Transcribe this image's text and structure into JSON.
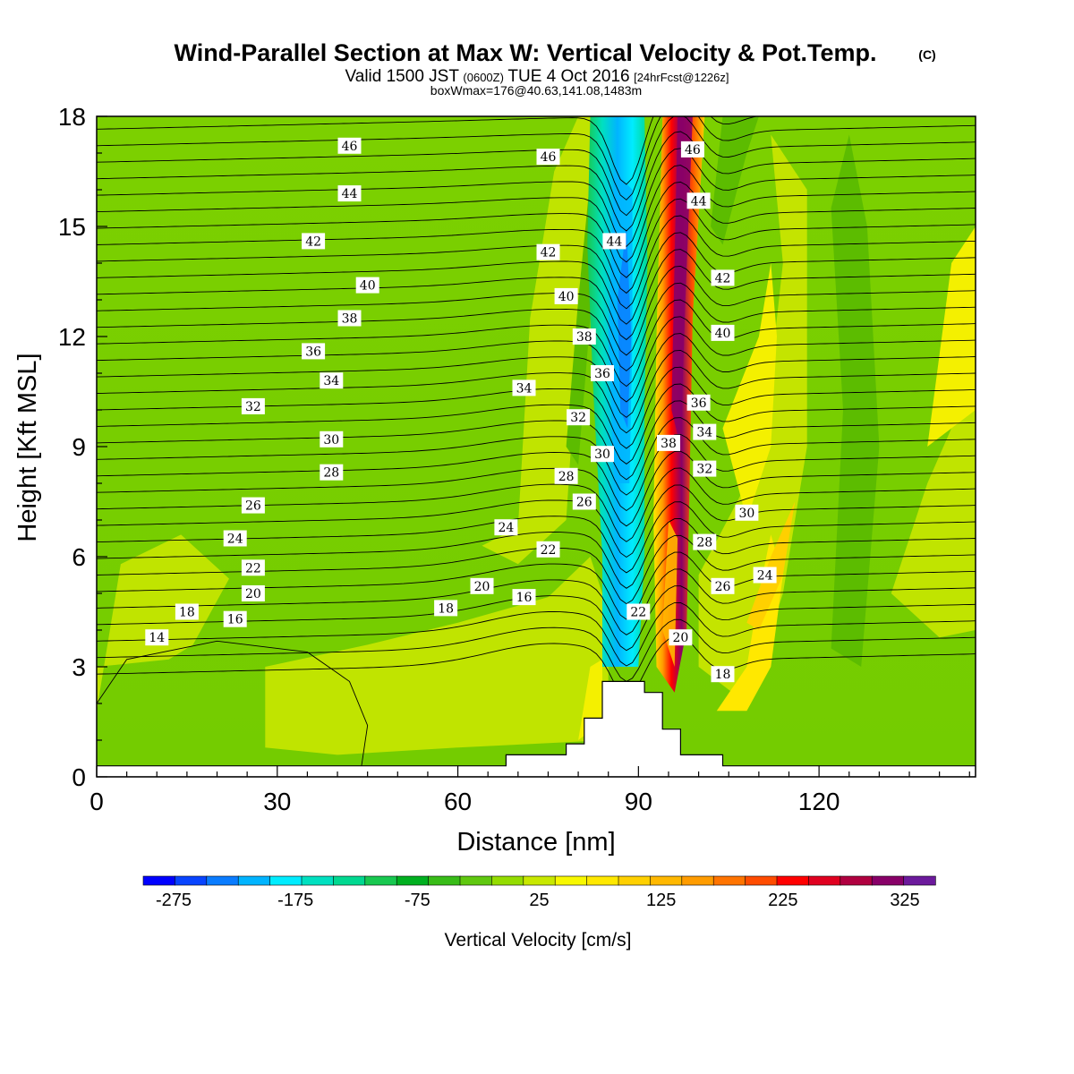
{
  "title": {
    "main": "Wind-Parallel Section at Max W: Vertical Velocity & Pot.Temp.",
    "copyright": "(C)",
    "line2_a": "Valid 1500 JST",
    "line2_b": "(0600Z)",
    "line2_c": "TUE 4 Oct 2016",
    "line2_d": "[24hrFcst@1226z]",
    "line3": "boxWmax=176@40.63,141.08,1483m"
  },
  "chart_data": {
    "type": "heatmap",
    "xlabel": "Distance [nm]",
    "ylabel": "Height [Kft MSL]",
    "xlim": [
      0,
      146
    ],
    "ylim": [
      0,
      18
    ],
    "x_ticks": [
      0,
      30,
      60,
      90,
      120
    ],
    "y_ticks": [
      0,
      3,
      6,
      9,
      12,
      15,
      18
    ],
    "colorbar": {
      "title": "Vertical Velocity [cm/s]",
      "tick_values": [
        -275,
        -175,
        -75,
        25,
        125,
        225,
        325
      ],
      "tick_labels": [
        "-275",
        "-175",
        "-75",
        "25",
        "125",
        "225",
        "325"
      ],
      "colors": [
        "#0000ff",
        "#0844ff",
        "#0a7cff",
        "#00b4ff",
        "#00ecff",
        "#00e0c0",
        "#00d890",
        "#18c850",
        "#00b020",
        "#38bc18",
        "#60c810",
        "#94dc00",
        "#c8e800",
        "#f8f800",
        "#ffe800",
        "#ffd000",
        "#ffb800",
        "#ff9c00",
        "#ff7400",
        "#ff4c00",
        "#ff0000",
        "#e00020",
        "#b00040",
        "#880068",
        "#6c1a9c"
      ]
    },
    "terrain_profile": [
      [
        0,
        0.3
      ],
      [
        68,
        0.3
      ],
      [
        68,
        0.6
      ],
      [
        78,
        0.6
      ],
      [
        78,
        0.9
      ],
      [
        81,
        0.9
      ],
      [
        81,
        1.6
      ],
      [
        84,
        1.6
      ],
      [
        84,
        2.6
      ],
      [
        91,
        2.6
      ],
      [
        91,
        2.3
      ],
      [
        94,
        2.3
      ],
      [
        94,
        1.3
      ],
      [
        97,
        1.3
      ],
      [
        97,
        0.6
      ],
      [
        104,
        0.6
      ],
      [
        104,
        0.3
      ],
      [
        146,
        0.3
      ],
      [
        146,
        0
      ],
      [
        0,
        0
      ]
    ],
    "velocity_series": [
      {
        "x_range": [
          0,
          146
        ],
        "value_cm_s": -50,
        "note": "background"
      },
      {
        "x_range": [
          82,
          92
        ],
        "value_cm_s": -175,
        "label": "downdraft band"
      },
      {
        "x_range": [
          92,
          100
        ],
        "value_cm_s": 300,
        "label": "updraft band"
      }
    ],
    "theta_contour_values": [
      14,
      16,
      18,
      20,
      22,
      24,
      26,
      28,
      30,
      32,
      34,
      36,
      38,
      40,
      42,
      44,
      46
    ],
    "contour_labels": [
      {
        "text": "46",
        "x": 42,
        "y": 17.2
      },
      {
        "text": "44",
        "x": 42,
        "y": 15.9
      },
      {
        "text": "42",
        "x": 36,
        "y": 14.6
      },
      {
        "text": "40",
        "x": 45,
        "y": 13.4
      },
      {
        "text": "38",
        "x": 42,
        "y": 12.5
      },
      {
        "text": "36",
        "x": 36,
        "y": 11.6
      },
      {
        "text": "34",
        "x": 39,
        "y": 10.8
      },
      {
        "text": "32",
        "x": 26,
        "y": 10.1
      },
      {
        "text": "30",
        "x": 39,
        "y": 9.2
      },
      {
        "text": "28",
        "x": 39,
        "y": 8.3
      },
      {
        "text": "26",
        "x": 26,
        "y": 7.4
      },
      {
        "text": "24",
        "x": 23,
        "y": 6.5
      },
      {
        "text": "22",
        "x": 26,
        "y": 5.7
      },
      {
        "text": "20",
        "x": 26,
        "y": 5.0
      },
      {
        "text": "18",
        "x": 15,
        "y": 4.5
      },
      {
        "text": "16",
        "x": 23,
        "y": 4.3
      },
      {
        "text": "14",
        "x": 10,
        "y": 3.8
      },
      {
        "text": "46",
        "x": 75,
        "y": 16.9
      },
      {
        "text": "42",
        "x": 75,
        "y": 14.3
      },
      {
        "text": "40",
        "x": 78,
        "y": 13.1
      },
      {
        "text": "38",
        "x": 81,
        "y": 12.0
      },
      {
        "text": "36",
        "x": 84,
        "y": 11.0
      },
      {
        "text": "34",
        "x": 71,
        "y": 10.6
      },
      {
        "text": "32",
        "x": 80,
        "y": 9.8
      },
      {
        "text": "30",
        "x": 84,
        "y": 8.8
      },
      {
        "text": "28",
        "x": 78,
        "y": 8.2
      },
      {
        "text": "26",
        "x": 81,
        "y": 7.5
      },
      {
        "text": "24",
        "x": 68,
        "y": 6.8
      },
      {
        "text": "22",
        "x": 75,
        "y": 6.2
      },
      {
        "text": "20",
        "x": 64,
        "y": 5.2
      },
      {
        "text": "18",
        "x": 58,
        "y": 4.6
      },
      {
        "text": "16",
        "x": 71,
        "y": 4.9
      },
      {
        "text": "44",
        "x": 86,
        "y": 14.6
      },
      {
        "text": "22",
        "x": 90,
        "y": 4.5
      },
      {
        "text": "46",
        "x": 99,
        "y": 17.1
      },
      {
        "text": "44",
        "x": 100,
        "y": 15.7
      },
      {
        "text": "42",
        "x": 104,
        "y": 13.6
      },
      {
        "text": "40",
        "x": 104,
        "y": 12.1
      },
      {
        "text": "36",
        "x": 100,
        "y": 10.2
      },
      {
        "text": "38",
        "x": 95,
        "y": 9.1
      },
      {
        "text": "34",
        "x": 101,
        "y": 9.4
      },
      {
        "text": "32",
        "x": 101,
        "y": 8.4
      },
      {
        "text": "30",
        "x": 108,
        "y": 7.2
      },
      {
        "text": "28",
        "x": 101,
        "y": 6.4
      },
      {
        "text": "26",
        "x": 104,
        "y": 5.2
      },
      {
        "text": "24",
        "x": 111,
        "y": 5.5
      },
      {
        "text": "20",
        "x": 97,
        "y": 3.8
      },
      {
        "text": "18",
        "x": 104,
        "y": 2.8
      }
    ]
  }
}
